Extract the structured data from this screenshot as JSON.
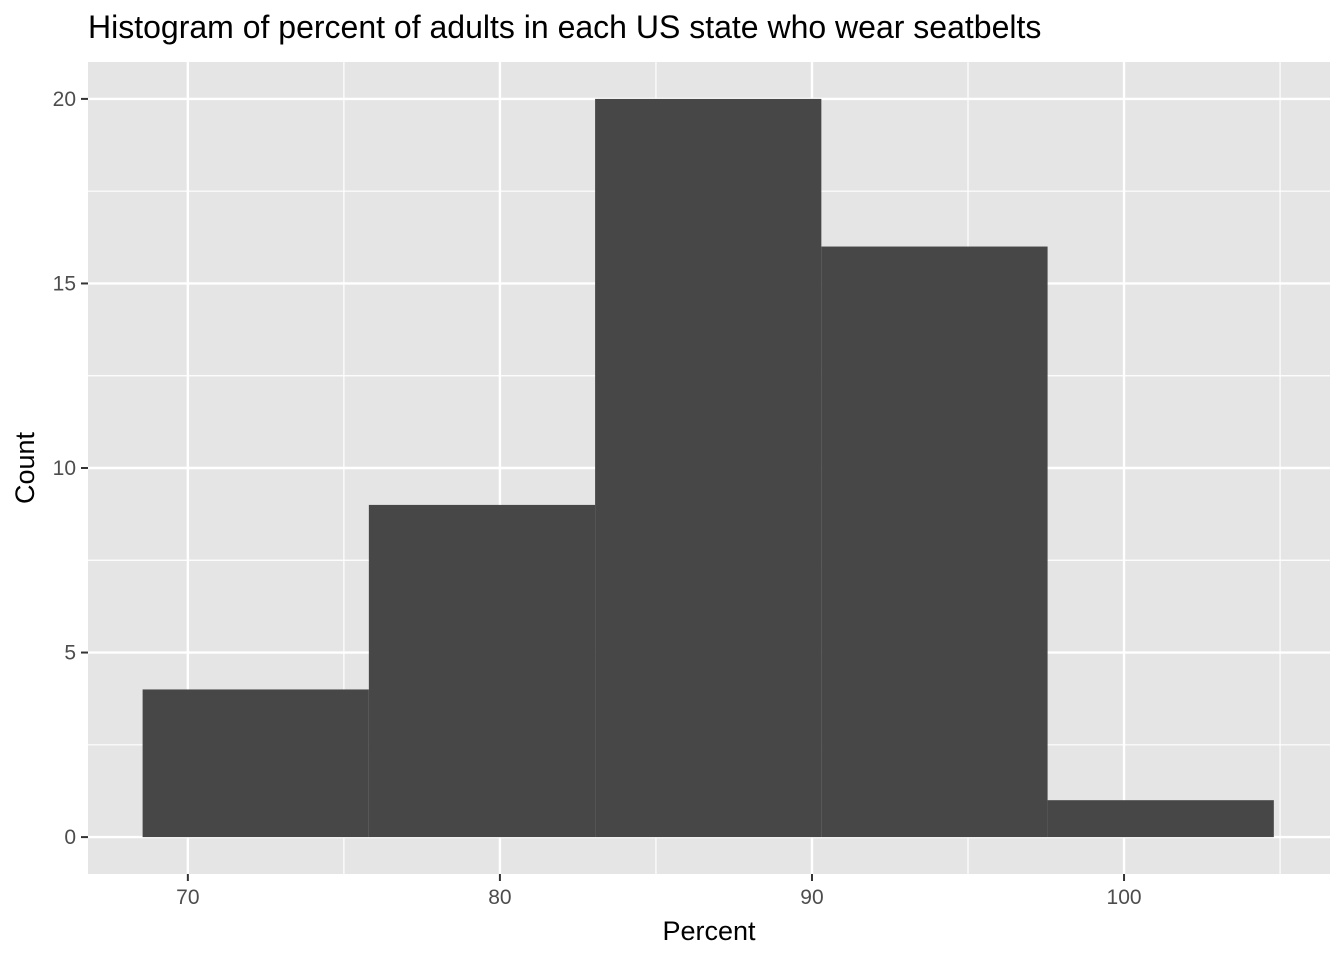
{
  "chart_data": {
    "type": "bar",
    "subtype": "histogram",
    "title": "Histogram of percent of adults in each US state who wear seatbelts",
    "xlabel": "Percent",
    "ylabel": "Count",
    "bins": [
      {
        "x_start": 68.55,
        "x_end": 75.8,
        "count": 4
      },
      {
        "x_start": 75.8,
        "x_end": 83.05,
        "count": 9
      },
      {
        "x_start": 83.05,
        "x_end": 90.3,
        "count": 20
      },
      {
        "x_start": 90.3,
        "x_end": 97.55,
        "count": 16
      },
      {
        "x_start": 97.55,
        "x_end": 104.8,
        "count": 1
      }
    ],
    "xlim": [
      66.8,
      106.6
    ],
    "ylim": [
      -1,
      21
    ],
    "x_ticks": [
      70,
      80,
      90,
      100
    ],
    "x_minor_ticks": [
      75,
      85,
      95,
      105
    ],
    "y_ticks": [
      0,
      5,
      10,
      15,
      20
    ],
    "y_minor_ticks": [
      2.5,
      7.5,
      12.5,
      17.5
    ],
    "grid": true,
    "legend": "none",
    "colors": {
      "bar_fill": "#474747",
      "panel_background": "#e5e5e5",
      "grid_line": "#ffffff",
      "tick_text": "#4d4d4d",
      "tick_mark": "#333333"
    }
  }
}
